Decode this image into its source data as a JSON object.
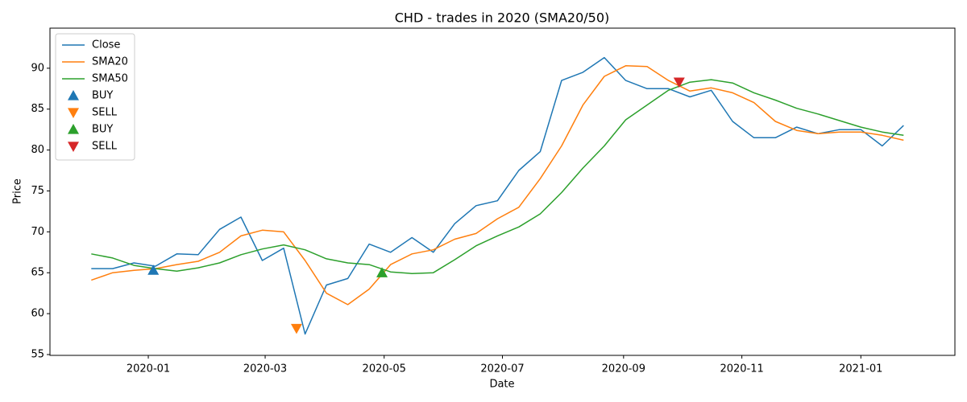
{
  "chart_data": {
    "type": "line",
    "title": "CHD - trades in 2020 (SMA20/50)",
    "xlabel": "Date",
    "ylabel": "Price",
    "x": [
      2019.92,
      2019.95,
      2019.98,
      2020.01,
      2020.04,
      2020.07,
      2020.1,
      2020.13,
      2020.16,
      2020.19,
      2020.22,
      2020.25,
      2020.28,
      2020.31,
      2020.34,
      2020.37,
      2020.4,
      2020.43,
      2020.46,
      2020.49,
      2020.52,
      2020.55,
      2020.58,
      2020.61,
      2020.64,
      2020.67,
      2020.7,
      2020.73,
      2020.76,
      2020.79,
      2020.82,
      2020.85,
      2020.88,
      2020.91,
      2020.94,
      2020.97,
      2021.0,
      2021.03,
      2021.06
    ],
    "xlim": [
      2019.862,
      2021.132
    ],
    "xticks": [
      {
        "value": 2020.0,
        "label": "2020-01"
      },
      {
        "value": 2020.164,
        "label": "2020-03"
      },
      {
        "value": 2020.331,
        "label": "2020-05"
      },
      {
        "value": 2020.497,
        "label": "2020-07"
      },
      {
        "value": 2020.667,
        "label": "2020-09"
      },
      {
        "value": 2020.833,
        "label": "2020-11"
      },
      {
        "value": 2021.0,
        "label": "2021-01"
      }
    ],
    "ylim": [
      54.9,
      94.9
    ],
    "yticks": [
      55,
      60,
      65,
      70,
      75,
      80,
      85,
      90
    ],
    "legend": "upper left",
    "series": [
      {
        "name": "Close",
        "type": "line",
        "color": "#1f77b4",
        "values": [
          65.5,
          65.5,
          66.2,
          65.8,
          67.3,
          67.2,
          70.3,
          71.8,
          66.5,
          68,
          57.5,
          63.5,
          64.3,
          68.5,
          67.5,
          69.3,
          67.5,
          71.0,
          73.2,
          73.8,
          77.5,
          79.8,
          88.5,
          89.5,
          91.3,
          88.5,
          87.5,
          87.5,
          86.5,
          87.3,
          83.5,
          81.5,
          81.5,
          82.8,
          82.0,
          82.5,
          82.5,
          80.5,
          83.0
        ]
      },
      {
        "name": "SMA20",
        "type": "line",
        "color": "#ff7f0e",
        "values": [
          64.1,
          65.0,
          65.3,
          65.5,
          66.0,
          66.4,
          67.5,
          69.5,
          70.2,
          70.0,
          66.5,
          62.5,
          61.1,
          63.0,
          66.0,
          67.3,
          67.8,
          69.1,
          69.8,
          71.6,
          73.0,
          76.5,
          80.5,
          85.5,
          89.0,
          90.3,
          90.2,
          88.5,
          87.2,
          87.6,
          87.0,
          85.8,
          83.5,
          82.4,
          82.0,
          82.2,
          82.2,
          81.8,
          81.2
        ]
      },
      {
        "name": "SMA50",
        "type": "line",
        "color": "#2ca02c",
        "values": [
          67.3,
          66.8,
          65.9,
          65.5,
          65.2,
          65.6,
          66.2,
          67.2,
          67.9,
          68.4,
          67.8,
          66.7,
          66.2,
          66.0,
          65.1,
          64.9,
          65.0,
          66.6,
          68.3,
          69.5,
          70.6,
          72.2,
          74.8,
          77.8,
          80.5,
          83.7,
          85.5,
          87.3,
          88.3,
          88.6,
          88.2,
          87.0,
          86.1,
          85.1,
          84.4,
          83.6,
          82.8,
          82.2,
          81.8
        ]
      },
      {
        "name": "BUY",
        "type": "scatter",
        "marker": "triangle-up",
        "color": "#1f77b4",
        "x": [
          2020.007
        ],
        "values": [
          65.3
        ]
      },
      {
        "name": "SELL",
        "type": "scatter",
        "marker": "triangle-down",
        "color": "#ff7f0e",
        "x": [
          2020.208
        ],
        "values": [
          58.2
        ]
      },
      {
        "name": "BUY",
        "type": "scatter",
        "marker": "triangle-up",
        "color": "#2ca02c",
        "x": [
          2020.328
        ],
        "values": [
          65.0
        ]
      },
      {
        "name": "SELL",
        "type": "scatter",
        "marker": "triangle-down",
        "color": "#d62728",
        "x": [
          2020.745
        ],
        "values": [
          88.3
        ]
      }
    ]
  }
}
